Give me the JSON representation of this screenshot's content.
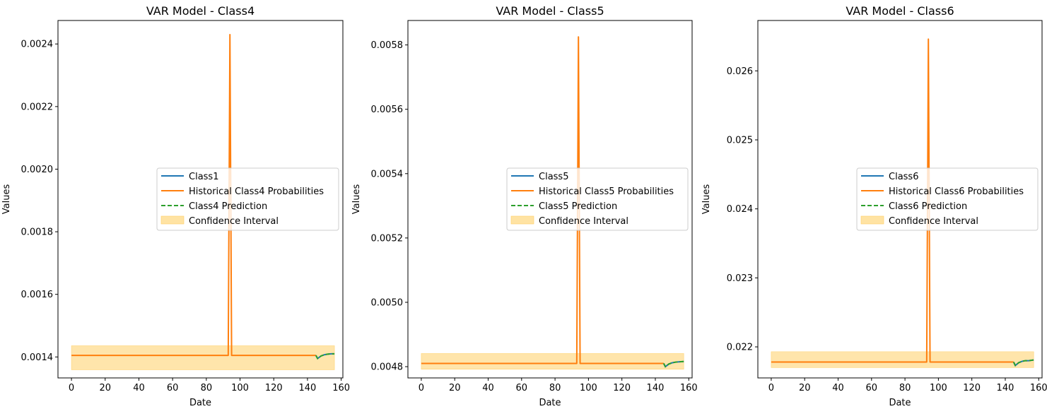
{
  "colors": {
    "class_line": "#1f77b4",
    "historical_line": "#ff7f0e",
    "prediction_line": "#2ca02c",
    "confidence_fill": "#ffe3a3",
    "confidence_edge": "#ffcf66"
  },
  "chart_data": [
    {
      "type": "line",
      "title": "VAR Model - Class4",
      "xlabel": "Date",
      "ylabel": "Values",
      "xlim": [
        -8,
        161
      ],
      "ylim": [
        0.001333,
        0.002475
      ],
      "xticks": [
        0,
        20,
        40,
        60,
        80,
        100,
        120,
        140,
        160
      ],
      "xtick_labels": [
        "0",
        "20",
        "40",
        "60",
        "80",
        "100",
        "120",
        "140",
        "160"
      ],
      "yticks": [
        0.0014,
        0.0016,
        0.0018,
        0.002,
        0.0022,
        0.0024
      ],
      "ytick_labels": [
        "0.0014",
        "0.0016",
        "0.0018",
        "0.0020",
        "0.0022",
        "0.0024"
      ],
      "legend_position": "center-right",
      "series": [
        {
          "name": "Class1",
          "role": "class",
          "x": [],
          "values": []
        },
        {
          "name": "Historical Class4 Probabilities",
          "role": "historical",
          "x": [
            0,
            93,
            94,
            95,
            145
          ],
          "values": [
            0.001405,
            0.001405,
            0.00243,
            0.001405,
            0.001405
          ]
        },
        {
          "name": "Class4 Prediction",
          "role": "prediction",
          "x": [
            145,
            146,
            148,
            150,
            152,
            154,
            156
          ],
          "values": [
            0.001405,
            0.001395,
            0.001403,
            0.001407,
            0.001409,
            0.00141,
            0.00141
          ]
        },
        {
          "name": "Confidence Interval",
          "role": "band",
          "x": [
            0,
            156
          ],
          "lower": [
            0.001359,
            0.001359
          ],
          "upper": [
            0.001436,
            0.001436
          ]
        }
      ]
    },
    {
      "type": "line",
      "title": "VAR Model - Class5",
      "xlabel": "Date",
      "ylabel": "Values",
      "xlim": [
        -8,
        162
      ],
      "ylim": [
        0.004765,
        0.005876
      ],
      "xticks": [
        0,
        20,
        40,
        60,
        80,
        100,
        120,
        140,
        160
      ],
      "xtick_labels": [
        "0",
        "20",
        "40",
        "60",
        "80",
        "100",
        "120",
        "140",
        "160"
      ],
      "yticks": [
        0.0048,
        0.005,
        0.0052,
        0.0054,
        0.0056,
        0.0058
      ],
      "ytick_labels": [
        "0.0048",
        "0.0050",
        "0.0052",
        "0.0054",
        "0.0056",
        "0.0058"
      ],
      "legend_position": "center-right",
      "series": [
        {
          "name": "Class5",
          "role": "class",
          "x": [],
          "values": []
        },
        {
          "name": "Historical Class5 Probabilities",
          "role": "historical",
          "x": [
            0,
            93,
            94,
            95,
            145
          ],
          "values": [
            0.00481,
            0.00481,
            0.005825,
            0.00481,
            0.00481
          ]
        },
        {
          "name": "Class5 Prediction",
          "role": "prediction",
          "x": [
            145,
            146,
            148,
            150,
            152,
            154,
            157
          ],
          "values": [
            0.00481,
            0.0048,
            0.004808,
            0.004812,
            0.004814,
            0.004815,
            0.004816
          ]
        },
        {
          "name": "Confidence Interval",
          "role": "band",
          "x": [
            0,
            157
          ],
          "lower": [
            0.004792,
            0.004792
          ],
          "upper": [
            0.004841,
            0.004841
          ]
        }
      ]
    },
    {
      "type": "line",
      "title": "VAR Model - Class6",
      "xlabel": "Date",
      "ylabel": "Values",
      "xlim": [
        -8,
        162
      ],
      "ylim": [
        0.02155,
        0.02673
      ],
      "xticks": [
        0,
        20,
        40,
        60,
        80,
        100,
        120,
        140,
        160
      ],
      "xtick_labels": [
        "0",
        "20",
        "40",
        "60",
        "80",
        "100",
        "120",
        "140",
        "160"
      ],
      "yticks": [
        0.022,
        0.023,
        0.024,
        0.025,
        0.026
      ],
      "ytick_labels": [
        "0.022",
        "0.023",
        "0.024",
        "0.025",
        "0.026"
      ],
      "legend_position": "center-right",
      "series": [
        {
          "name": "Class6",
          "role": "class",
          "x": [],
          "values": []
        },
        {
          "name": "Historical Class6 Probabilities",
          "role": "historical",
          "x": [
            0,
            93,
            94,
            95,
            145
          ],
          "values": [
            0.02178,
            0.02178,
            0.02646,
            0.02178,
            0.02178
          ]
        },
        {
          "name": "Class6 Prediction",
          "role": "prediction",
          "x": [
            145,
            146,
            148,
            150,
            152,
            154,
            157
          ],
          "values": [
            0.02178,
            0.02173,
            0.02177,
            0.02179,
            0.0218,
            0.0218,
            0.02181
          ]
        },
        {
          "name": "Confidence Interval",
          "role": "band",
          "x": [
            0,
            157
          ],
          "lower": [
            0.0217,
            0.0217
          ],
          "upper": [
            0.02193,
            0.02193
          ]
        }
      ]
    }
  ]
}
